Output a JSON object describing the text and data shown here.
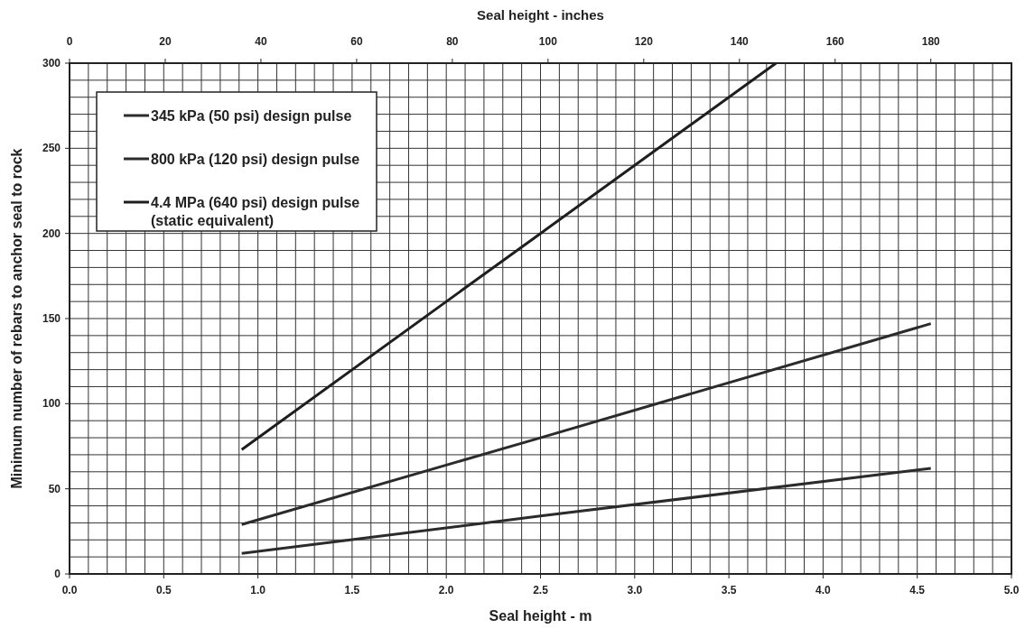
{
  "chart_data": {
    "type": "line",
    "xlabel": "Seal height - m",
    "x2label": "Seal height - inches",
    "ylabel": "Minimum number of rebars to anchor seal to rock",
    "xlim": [
      0,
      5
    ],
    "xticks": [
      {
        "value": 0,
        "label": "0.0"
      },
      {
        "value": 0.5,
        "label": "0.5"
      },
      {
        "value": 1,
        "label": "1.0"
      },
      {
        "value": 1.5,
        "label": "1.5"
      },
      {
        "value": 2,
        "label": "2.0"
      },
      {
        "value": 2.5,
        "label": "2.5"
      },
      {
        "value": 3,
        "label": "3.0"
      },
      {
        "value": 3.5,
        "label": "3.5"
      },
      {
        "value": 4,
        "label": "4.0"
      },
      {
        "value": 4.5,
        "label": "4.5"
      },
      {
        "value": 5,
        "label": "5.0"
      }
    ],
    "x2lim": [
      0,
      196.85
    ],
    "x2ticks": [
      0,
      20,
      40,
      60,
      80,
      100,
      120,
      140,
      160,
      180
    ],
    "ylim": [
      0,
      300
    ],
    "yticks": [
      0,
      50,
      100,
      150,
      200,
      250,
      300
    ],
    "grid": true,
    "legend": "top left",
    "marker": "none",
    "line_style": "solid",
    "series": [
      {
        "name": "345 kPa (50 psi) design pulse",
        "color": "#2b2b2b",
        "x": [
          0.914,
          2.5,
          4.572
        ],
        "values": [
          12,
          34,
          62
        ]
      },
      {
        "name": "800 kPa (120 psi) design pulse",
        "color": "#2b2b2b",
        "x": [
          0.914,
          2.5,
          4.572
        ],
        "values": [
          29,
          80,
          147
        ]
      },
      {
        "name": "4.4 MPa (640 psi) design pulse\n(static equivalent)",
        "color": "#1e1e1e",
        "x": [
          0.914,
          2.5,
          3.75
        ],
        "values": [
          73,
          200,
          300
        ]
      }
    ]
  }
}
